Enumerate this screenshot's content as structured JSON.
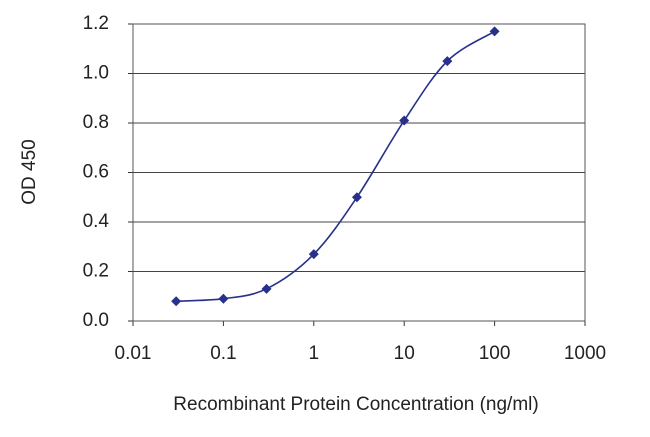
{
  "chart_data": {
    "type": "line",
    "x_label": "Recombinant Protein Concentration (ng/ml)",
    "y_label": "OD 450",
    "x": [
      0.03,
      0.1,
      0.3,
      1,
      3,
      10,
      30,
      100
    ],
    "series": [
      {
        "color": "#27318b",
        "values": [
          0.08,
          0.09,
          0.13,
          0.27,
          0.5,
          0.81,
          1.05,
          1.17
        ]
      }
    ],
    "x_scale": "log",
    "xlim": [
      0.01,
      1000
    ],
    "xticks": [
      0.01,
      0.1,
      1,
      10,
      100,
      1000
    ],
    "ylim": [
      0,
      1.2
    ],
    "yticks": [
      {
        "value": 0,
        "label": "0.0"
      },
      0.2,
      0.4,
      0.6,
      0.8,
      {
        "value": 1,
        "label": "1.0"
      },
      1.2
    ],
    "grid": true
  }
}
